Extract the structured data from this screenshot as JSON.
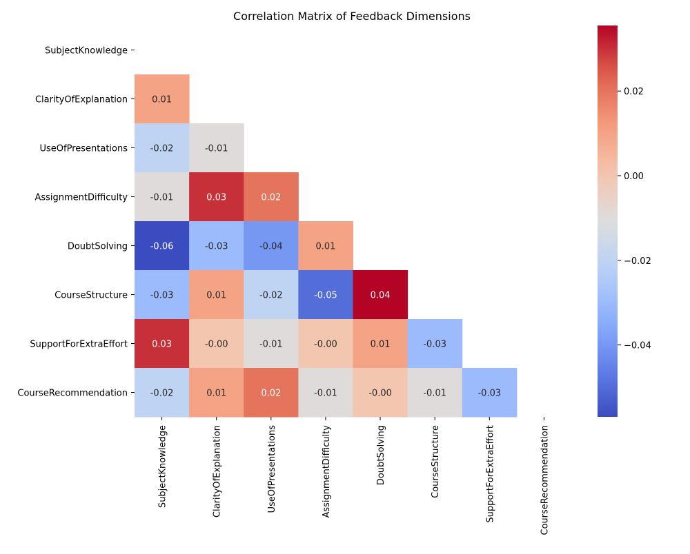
{
  "chart_data": {
    "type": "heatmap",
    "title": "Correlation Matrix of Feedback Dimensions",
    "xlabel": "",
    "ylabel": "",
    "labels": [
      "SubjectKnowledge",
      "ClarityOfExplanation",
      "UseOfPresentations",
      "AssignmentDifficulty",
      "DoubtSolving",
      "CourseStructure",
      "SupportForExtraEffort",
      "CourseRecommendation"
    ],
    "mask": "upper-triangle-including-diagonal",
    "matrix": [
      [
        null,
        null,
        null,
        null,
        null,
        null,
        null,
        null
      ],
      [
        0.01,
        null,
        null,
        null,
        null,
        null,
        null,
        null
      ],
      [
        -0.02,
        -0.01,
        null,
        null,
        null,
        null,
        null,
        null
      ],
      [
        -0.01,
        0.03,
        0.02,
        null,
        null,
        null,
        null,
        null
      ],
      [
        -0.06,
        -0.03,
        -0.04,
        0.01,
        null,
        null,
        null,
        null
      ],
      [
        -0.03,
        0.01,
        -0.02,
        -0.05,
        0.04,
        null,
        null,
        null
      ],
      [
        0.03,
        -0.0,
        -0.01,
        -0.0,
        0.01,
        -0.03,
        null,
        null
      ],
      [
        -0.02,
        0.01,
        0.02,
        -0.01,
        -0.0,
        -0.01,
        -0.03,
        null
      ]
    ],
    "cell_labels": [
      [
        null,
        null,
        null,
        null,
        null,
        null,
        null,
        null
      ],
      [
        "0.01",
        null,
        null,
        null,
        null,
        null,
        null,
        null
      ],
      [
        "-0.02",
        "-0.01",
        null,
        null,
        null,
        null,
        null,
        null
      ],
      [
        "-0.01",
        "0.03",
        "0.02",
        null,
        null,
        null,
        null,
        null
      ],
      [
        "-0.06",
        "-0.03",
        "-0.04",
        "0.01",
        null,
        null,
        null,
        null
      ],
      [
        "-0.03",
        "0.01",
        "-0.02",
        "-0.05",
        "0.04",
        null,
        null,
        null
      ],
      [
        "0.03",
        "-0.00",
        "-0.01",
        "-0.00",
        "0.01",
        "-0.03",
        null,
        null
      ],
      [
        "-0.02",
        "0.01",
        "0.02",
        "-0.01",
        "-0.00",
        "-0.01",
        "-0.03",
        null
      ]
    ],
    "colormap": "coolwarm",
    "colorbar": {
      "vmin": -0.057,
      "vmax": 0.0355,
      "ticks": [
        -0.04,
        -0.02,
        0.0,
        0.02
      ],
      "tick_labels": [
        "−0.04",
        "−0.02",
        "0.00",
        "0.02"
      ]
    },
    "grid": false
  }
}
